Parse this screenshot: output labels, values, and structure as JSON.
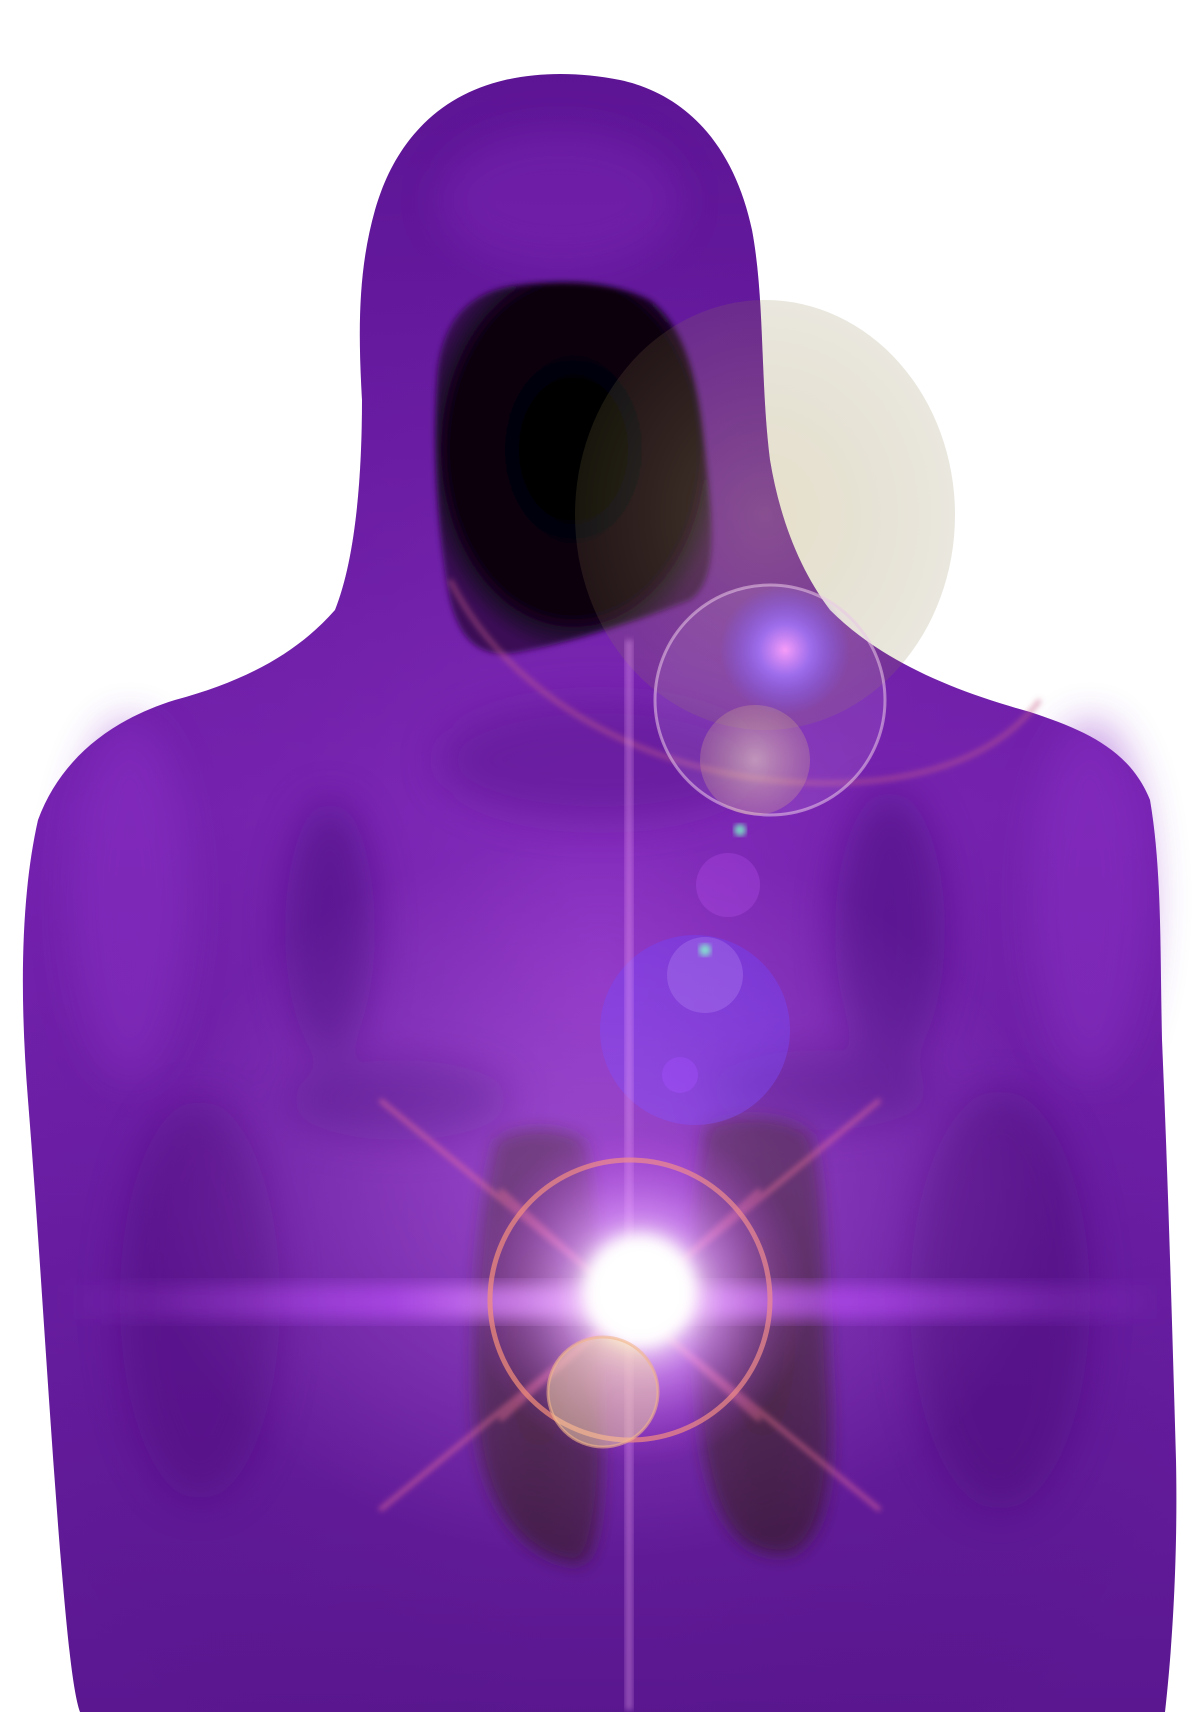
{
  "scene": {
    "subject": "hooded-figure",
    "colors": {
      "background": "#ffffff",
      "robe_light": "#8a2fc4",
      "robe_mid": "#6a1aa6",
      "robe_dark": "#4a0c7e",
      "hood_opening": "#050205",
      "lens_flare_core": "#ffffff",
      "flare_glow": "#d58cff",
      "flare_ring": "#ff9a6a",
      "orb_blue": "#7a5cff",
      "bokeh_warm": "#e6c79a"
    }
  }
}
